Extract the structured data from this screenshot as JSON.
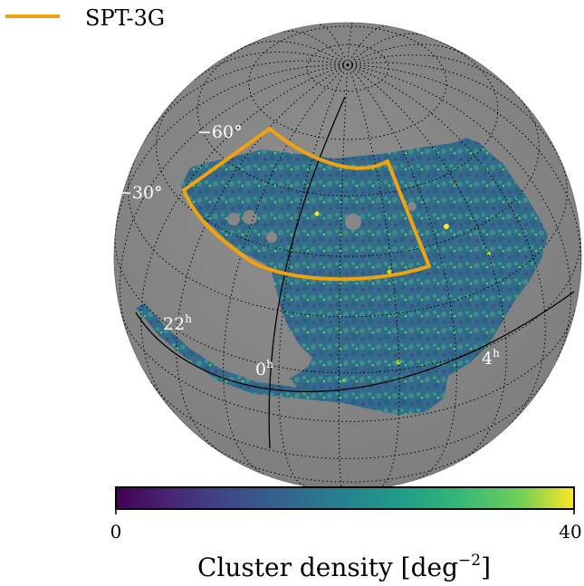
{
  "legend": {
    "label": "SPT-3G",
    "color": "#f2a20d"
  },
  "map": {
    "projection": "orthographic",
    "sphere_color": "#878787",
    "grid_style": "dotted",
    "lat_labels": [
      {
        "text": "−60°"
      },
      {
        "text": "−30°"
      }
    ],
    "ra_labels": [
      {
        "hour": "22",
        "sup": "h"
      },
      {
        "hour": "0",
        "sup": "h"
      },
      {
        "hour": "4",
        "sup": "h"
      }
    ],
    "footprint_label": "SPT-3G"
  },
  "colorbar": {
    "colormap": "viridis",
    "min_label": "0",
    "max_label": "40",
    "title": "Cluster density [deg",
    "title_sup": "−2",
    "title_end": "]",
    "range": [
      0,
      40
    ]
  },
  "colors": {
    "footprint": "#f2a20d",
    "background": "#ffffff",
    "label_on_map": "#ffffff"
  }
}
